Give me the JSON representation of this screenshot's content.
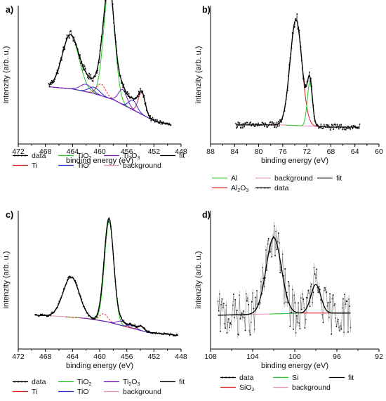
{
  "colors": {
    "data": "#000000",
    "fit": "#000000",
    "Ti": "#e02020",
    "TiO2": "#22cc22",
    "TiO": "#2a2ad0",
    "Ti2O3": "#7a1fc9",
    "background": "#e58fbd",
    "Al": "#22cc22",
    "Al2O3": "#e02020",
    "Si": "#22cc22",
    "SiO2": "#e02020"
  },
  "chart_data": [
    {
      "type": "line",
      "panel": "a)",
      "xlabel": "binding energy (eV)",
      "ylabel": "intenzity (arb. u.)",
      "xlim": [
        472,
        448
      ],
      "xticks": [
        "472",
        "468",
        "464",
        "460",
        "456",
        "452",
        "448"
      ],
      "ylim": [
        0,
        1
      ],
      "grid": false,
      "legend_position": "below",
      "legend": {
        "data": "data",
        "Ti": "Ti",
        "TiO2_pre": "TiO",
        "TiO2_sub": "2",
        "TiO": "TiO",
        "Ti2O3_a": "Ti",
        "Ti2O3_sub1": "2",
        "Ti2O3_b": "O",
        "Ti2O3_sub2": "3",
        "background": "background",
        "fit": "fit"
      },
      "x_range": [
        467.5,
        449.5
      ],
      "background_points": [
        [
          467.5,
          0.42
        ],
        [
          464,
          0.4
        ],
        [
          461,
          0.36
        ],
        [
          458,
          0.3
        ],
        [
          455,
          0.2
        ],
        [
          452,
          0.1
        ],
        [
          449.5,
          0.06
        ]
      ],
      "peaks": [
        {
          "component": "TiO2",
          "center": 458.6,
          "height": 1.05,
          "fwhm": 1.9
        },
        {
          "component": "TiO2",
          "center": 464.3,
          "height": 0.51,
          "fwhm": 2.9
        },
        {
          "component": "Ti",
          "center": 453.8,
          "height": 0.21,
          "fwhm": 1.2
        },
        {
          "component": "Ti",
          "center": 459.8,
          "height": 0.11,
          "fwhm": 1.6
        },
        {
          "component": "TiO",
          "center": 455.1,
          "height": 0.09,
          "fwhm": 1.4
        },
        {
          "component": "TiO",
          "center": 460.8,
          "height": 0.06,
          "fwhm": 1.9
        },
        {
          "component": "Ti2O3",
          "center": 456.6,
          "height": 0.14,
          "fwhm": 1.5
        },
        {
          "component": "Ti2O3",
          "center": 462.0,
          "height": 0.07,
          "fwhm": 2.0
        }
      ],
      "noise": 0.03,
      "dashed_components": [
        "Ti"
      ]
    },
    {
      "type": "line",
      "panel": "b)",
      "xlabel": "binding energy (eV)",
      "ylabel": "intenzity (arb. u.)",
      "xlim": [
        88,
        60
      ],
      "xticks": [
        "88",
        "84",
        "80",
        "76",
        "72",
        "68",
        "64",
        "60"
      ],
      "ylim": [
        0,
        1
      ],
      "grid": false,
      "legend_position": "below",
      "legend": {
        "Al": "Al",
        "Al2O3_a": "Al",
        "Al2O3_sub1": "2",
        "Al2O3_b": "O",
        "Al2O3_sub2": "3",
        "background": "background",
        "data": "data",
        "fit": "fit"
      },
      "x_range": [
        83.8,
        63.2
      ],
      "background_points": [
        [
          83.8,
          0.06
        ],
        [
          76,
          0.06
        ],
        [
          72,
          0.05
        ],
        [
          68,
          0.04
        ],
        [
          63.2,
          0.04
        ]
      ],
      "peaks": [
        {
          "component": "Al2O3",
          "center": 73.8,
          "height": 1.0,
          "fwhm": 2.3
        },
        {
          "component": "Al",
          "center": 71.5,
          "height": 0.41,
          "fwhm": 1.0
        }
      ],
      "noise": 0.045,
      "dashed_components": []
    },
    {
      "type": "line",
      "panel": "c)",
      "xlabel": "binding energy (eV)",
      "ylabel": "intenzity (arb. u.)",
      "xlim": [
        472,
        448
      ],
      "xticks": [
        "472",
        "468",
        "464",
        "460",
        "456",
        "452",
        "448"
      ],
      "ylim": [
        0,
        1
      ],
      "grid": false,
      "legend_position": "below",
      "legend": {
        "data": "data",
        "Ti": "Ti",
        "TiO2_pre": "TiO",
        "TiO2_sub": "2",
        "TiO": "TiO",
        "Ti2O3_a": "Ti",
        "Ti2O3_sub1": "2",
        "Ti2O3_b": "O",
        "Ti2O3_sub2": "3",
        "background": "background",
        "fit": "fit"
      },
      "x_range": [
        469.5,
        448.5
      ],
      "background_points": [
        [
          469.5,
          0.2
        ],
        [
          466,
          0.19
        ],
        [
          462,
          0.17
        ],
        [
          459,
          0.14
        ],
        [
          456,
          0.09
        ],
        [
          453,
          0.04
        ],
        [
          448.5,
          0.01
        ]
      ],
      "peaks": [
        {
          "component": "TiO2",
          "center": 458.6,
          "height": 0.95,
          "fwhm": 1.6
        },
        {
          "component": "TiO2",
          "center": 464.2,
          "height": 0.38,
          "fwhm": 2.8
        },
        {
          "component": "Ti",
          "center": 453.9,
          "height": 0.04,
          "fwhm": 1.1
        },
        {
          "component": "Ti",
          "center": 459.4,
          "height": 0.07,
          "fwhm": 1.4
        },
        {
          "component": "TiO",
          "center": 455.2,
          "height": 0.03,
          "fwhm": 1.3
        },
        {
          "component": "Ti2O3",
          "center": 456.8,
          "height": 0.04,
          "fwhm": 1.5
        }
      ],
      "noise": 0.015,
      "dashed_components": [
        "Ti"
      ]
    },
    {
      "type": "line",
      "panel": "d)",
      "xlabel": "binding energy (eV)",
      "ylabel": "intenzity (arb. u.)",
      "xlim": [
        108,
        92
      ],
      "xticks": [
        "108",
        "104",
        "100",
        "96",
        "92"
      ],
      "ylim": [
        0,
        1
      ],
      "grid": false,
      "legend_position": "below",
      "legend": {
        "data": "data",
        "SiO2_pre": "SiO",
        "SiO2_sub": "2",
        "Si": "Si",
        "background": "background",
        "fit": "fit"
      },
      "x_range": [
        107.3,
        94.7
      ],
      "background_points": [
        [
          107.3,
          0.2
        ],
        [
          103,
          0.21
        ],
        [
          99,
          0.22
        ],
        [
          94.7,
          0.22
        ]
      ],
      "peaks": [
        {
          "component": "SiO2",
          "center": 102.0,
          "height": 0.72,
          "fwhm": 1.7
        },
        {
          "component": "Si",
          "center": 98.0,
          "height": 0.27,
          "fwhm": 1.1
        }
      ],
      "noise": 0.2,
      "dashed_components": []
    }
  ]
}
